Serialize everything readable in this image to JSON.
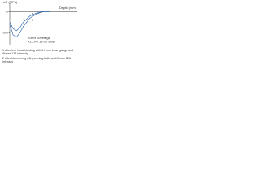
{
  "chart_data": {
    "type": "line",
    "y_label": "σR (MPa)",
    "x_label": "Depth (mm)",
    "annotations": [
      "200% coverage",
      "X2CrNi 18-10 steel"
    ],
    "x": [
      0,
      0.05,
      0.1,
      0.15,
      0.2,
      0.3,
      0.4,
      0.5,
      0.6
    ],
    "series": [
      {
        "name": "1",
        "color": "#3a6fb0",
        "values": [
          -300,
          -550,
          -600,
          -500,
          -350,
          -150,
          -50,
          0,
          0
        ]
      },
      {
        "name": "2",
        "color": "#3a6fb0",
        "values": [
          -250,
          -400,
          -450,
          -380,
          -250,
          -100,
          -30,
          0,
          0
        ]
      }
    ],
    "xlim": [
      0,
      1
    ],
    "ylim": [
      -800,
      200
    ],
    "yticks": [
      0,
      -500
    ],
    "notes": [
      "1 after free bead blasting with 0.6 mm bead gauge and Almen 12A intensity",
      "2 after hammering with peening balls and Almen 12A intensity"
    ]
  }
}
